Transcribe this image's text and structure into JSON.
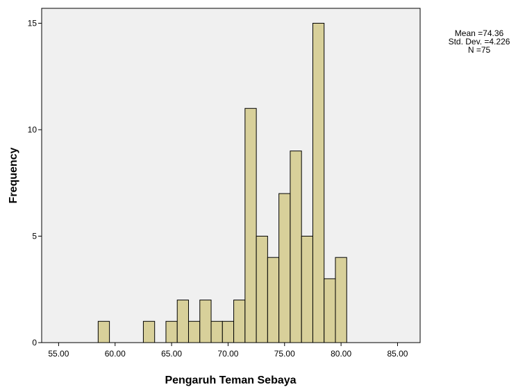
{
  "chart_data": {
    "type": "bar",
    "xlabel": "Pengaruh Teman Sebaya",
    "ylabel": "Frequency",
    "xlim": [
      53.5,
      87.0
    ],
    "ylim": [
      0,
      15.7
    ],
    "x_ticks": [
      55,
      60,
      65,
      70,
      75,
      80,
      85
    ],
    "x_tick_labels": [
      "55.00",
      "60.00",
      "65.00",
      "70.00",
      "75.00",
      "80.00",
      "85.00"
    ],
    "y_ticks": [
      0,
      5,
      10,
      15
    ],
    "y_tick_labels": [
      "0",
      "5",
      "10",
      "15"
    ],
    "bin_width": 1.0,
    "bins": [
      {
        "x": 59,
        "count": 1
      },
      {
        "x": 63,
        "count": 1
      },
      {
        "x": 65,
        "count": 1
      },
      {
        "x": 66,
        "count": 2
      },
      {
        "x": 67,
        "count": 1
      },
      {
        "x": 68,
        "count": 2
      },
      {
        "x": 69,
        "count": 1
      },
      {
        "x": 70,
        "count": 1
      },
      {
        "x": 71,
        "count": 2
      },
      {
        "x": 72,
        "count": 11
      },
      {
        "x": 73,
        "count": 5
      },
      {
        "x": 74,
        "count": 4
      },
      {
        "x": 75,
        "count": 7
      },
      {
        "x": 76,
        "count": 9
      },
      {
        "x": 77,
        "count": 5
      },
      {
        "x": 78,
        "count": 15
      },
      {
        "x": 79,
        "count": 3
      },
      {
        "x": 80,
        "count": 4
      }
    ],
    "grid": false,
    "bar_color": "#d8d09a",
    "plot_background": "#f0f0f0",
    "stats": {
      "mean": "Mean =74.36",
      "std_dev": "Std. Dev. =4.226",
      "n": "N =75"
    }
  }
}
